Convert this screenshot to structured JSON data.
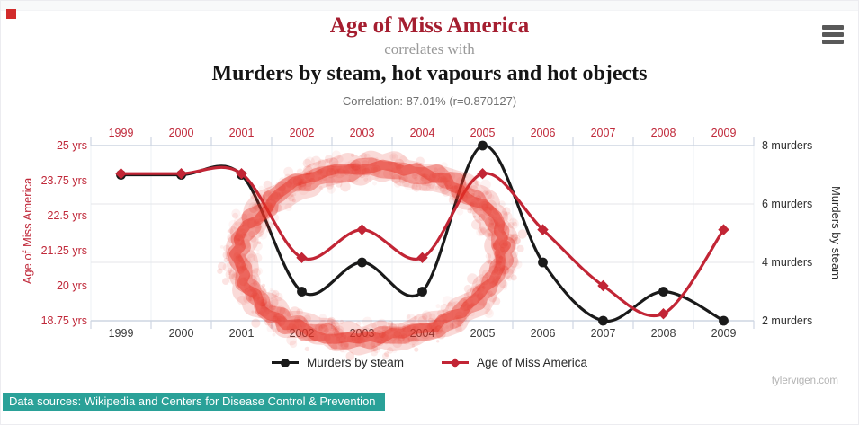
{
  "header": {
    "title1": "Age of Miss America",
    "subtitle": "correlates with",
    "title2": "Murders by steam, hot vapours and hot objects",
    "correlation": "Correlation: 87.01% (r=0.870127)"
  },
  "menu": {
    "icon": "hamburger-icon"
  },
  "chart_data": {
    "type": "line",
    "x": [
      1999,
      2000,
      2001,
      2002,
      2003,
      2004,
      2005,
      2006,
      2007,
      2008,
      2009
    ],
    "series": [
      {
        "name": "Murders by steam",
        "axis": "right",
        "marker": "circle",
        "color": "#1a1a1a",
        "values": [
          7,
          7,
          7,
          3,
          4,
          3,
          8,
          4,
          2,
          3,
          2
        ]
      },
      {
        "name": "Age of Miss America",
        "axis": "left",
        "marker": "diamond",
        "color": "#c22535",
        "values": [
          24,
          24,
          24,
          21,
          22,
          21,
          24,
          22,
          20,
          19,
          22
        ]
      }
    ],
    "left_axis": {
      "title": "Age of Miss America",
      "tick_labels": [
        "25 yrs",
        "23.75 yrs",
        "22.5 yrs",
        "21.25 yrs",
        "20 yrs",
        "18.75 yrs"
      ],
      "min": 18.75,
      "max": 25,
      "color": "#c0293a"
    },
    "right_axis": {
      "title": "Murders by steam",
      "tick_labels": [
        "8 murders",
        "6 murders",
        "4 murders",
        "2 murders"
      ],
      "min": 2,
      "max": 8,
      "color": "#2f2f2f"
    },
    "x_axis": {
      "top_label_color": "#c0293a",
      "bottom_label_color": "#3a3a3a"
    },
    "grid": {
      "hlines_at_murders": [
        6,
        4
      ],
      "axis_line_color": "#cdd5e2",
      "gridline_color": "#e4e6ea",
      "vgrid_color": "#eef1f5",
      "tick_color": "#c5cede"
    },
    "annotation": {
      "type": "hand-drawn-spray-circle",
      "color": "#e63226",
      "around": "2002-2004 dip of both lines"
    }
  },
  "legend": {
    "items": [
      {
        "label": "Murders by steam",
        "color": "#1a1a1a",
        "marker": "circle"
      },
      {
        "label": "Age of Miss America",
        "color": "#c22535",
        "marker": "diamond"
      }
    ]
  },
  "watermark": {
    "text": "tylervigen.com"
  },
  "footer": {
    "text": "Data sources: Wikipedia and Centers for Disease Control & Prevention",
    "highlight_color": "#2aa198",
    "text_color": "#ffffff"
  },
  "decor": {
    "red_square_color": "#d22b2b"
  }
}
